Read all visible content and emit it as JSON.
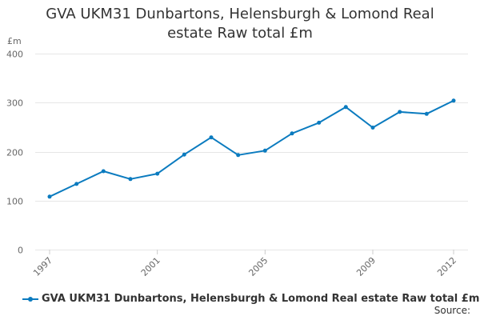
{
  "title": {
    "line1": "GVA UKM31 Dunbartons, Helensburgh & Lomond Real",
    "line2": "estate Raw total £m"
  },
  "unit_label": "£m",
  "legend_label": "GVA UKM31 Dunbartons, Helensburgh & Lomond Real estate Raw total £m",
  "source_label": "Source:",
  "colors": {
    "series": "#0b7bbf",
    "grid": "#e6e6e6",
    "text": "#333333"
  },
  "chart_data": {
    "type": "line",
    "title": "GVA UKM31 Dunbartons, Helensburgh & Lomond Real estate Raw total £m",
    "ylabel": "£m",
    "xlabel": "",
    "ylim": [
      0,
      400
    ],
    "y_ticks": [
      0,
      100,
      200,
      300,
      400
    ],
    "x_ticks": [
      1997,
      2001,
      2005,
      2009,
      2012
    ],
    "grid": true,
    "legend": "bottom",
    "x": [
      1997,
      1998,
      1999,
      2000,
      2001,
      2002,
      2003,
      2004,
      2005,
      2006,
      2007,
      2008,
      2009,
      2010,
      2011,
      2012
    ],
    "series": [
      {
        "name": "GVA UKM31 Dunbartons, Helensburgh & Lomond Real estate Raw total £m",
        "values": [
          108,
          134,
          160,
          144,
          155,
          194,
          229,
          193,
          202,
          237,
          259,
          291,
          249,
          281,
          277,
          304
        ]
      }
    ]
  }
}
